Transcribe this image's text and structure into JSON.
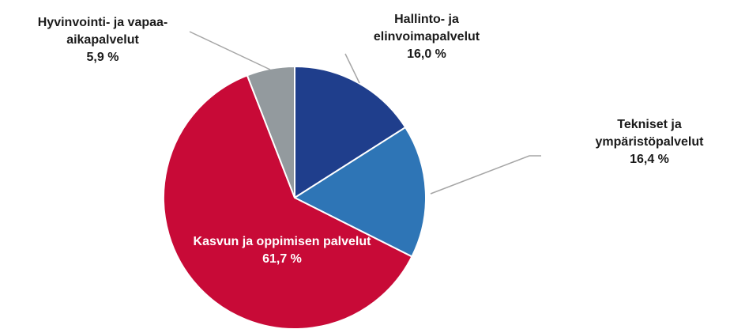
{
  "chart_data": {
    "type": "pie",
    "categories": [
      "Hallinto- ja elinvoimapalvelut",
      "Tekniset ja ympäristöpalvelut",
      "Kasvun ja oppimisen palvelut",
      "Hyvinvointi- ja vapaa-aikapalvelut"
    ],
    "values": [
      16.0,
      16.4,
      61.7,
      5.9
    ],
    "value_labels": [
      "16,0 %",
      "16,4 %",
      "61,7 %",
      "5,9 %"
    ],
    "colors": [
      "#1f3e8c",
      "#2e75b6",
      "#c80a37",
      "#939a9e"
    ]
  }
}
